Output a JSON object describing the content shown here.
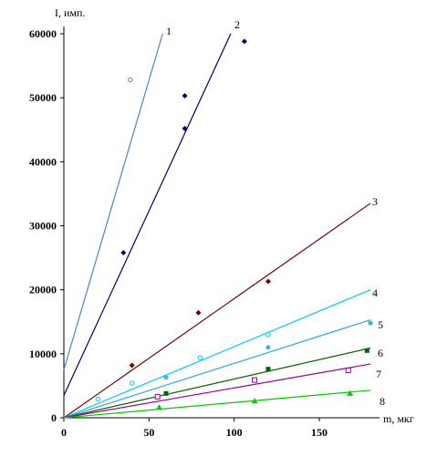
{
  "chart_data": {
    "type": "scatter",
    "title": "",
    "xlabel": "m, мкг",
    "ylabel": "I, имп.",
    "xlim": [
      0,
      180
    ],
    "ylim": [
      0,
      60000
    ],
    "grid": false,
    "legend": "none",
    "x_ticks": [
      0,
      50,
      100,
      150
    ],
    "y_ticks": [
      0,
      10000,
      20000,
      30000,
      40000,
      50000,
      60000
    ],
    "series": [
      {
        "name": "1",
        "color": "#4f81d9",
        "marker": "circle-open",
        "points": [
          [
            39,
            52800
          ]
        ],
        "trend": [
          [
            0,
            7500
          ],
          [
            58,
            60000
          ]
        ]
      },
      {
        "name": "2",
        "color": "#000080",
        "marker": "diamond",
        "points": [
          [
            35,
            25800
          ],
          [
            71,
            50300
          ],
          [
            71,
            45200
          ],
          [
            106,
            58800
          ]
        ],
        "trend": [
          [
            0,
            3500
          ],
          [
            98,
            60000
          ]
        ]
      },
      {
        "name": "3",
        "color": "#800000",
        "marker": "diamond",
        "points": [
          [
            40,
            8200
          ],
          [
            79,
            16400
          ],
          [
            120,
            21300
          ]
        ],
        "trend": [
          [
            0,
            0
          ],
          [
            180,
            33500
          ]
        ]
      },
      {
        "name": "4",
        "color": "#00ccff",
        "marker": "circle-open",
        "points": [
          [
            20,
            2900
          ],
          [
            40,
            5400
          ],
          [
            80,
            9400
          ],
          [
            120,
            13000
          ]
        ],
        "trend": [
          [
            0,
            0
          ],
          [
            180,
            20000
          ]
        ]
      },
      {
        "name": "5",
        "color": "#33a6dd",
        "marker": "asterisk",
        "points": [
          [
            60,
            6300
          ],
          [
            120,
            11000
          ],
          [
            180,
            14800
          ]
        ],
        "trend": [
          [
            0,
            0
          ],
          [
            180,
            15300
          ]
        ]
      },
      {
        "name": "6",
        "color": "#006400",
        "marker": "square",
        "points": [
          [
            60,
            3800
          ],
          [
            120,
            7600
          ],
          [
            178,
            10500
          ]
        ],
        "trend": [
          [
            0,
            0
          ],
          [
            180,
            10900
          ]
        ]
      },
      {
        "name": "7",
        "color": "#990099",
        "marker": "square-open",
        "points": [
          [
            55,
            3300
          ],
          [
            112,
            5900
          ],
          [
            167,
            7400
          ]
        ],
        "trend": [
          [
            0,
            0
          ],
          [
            180,
            8400
          ]
        ]
      },
      {
        "name": "8",
        "color": "#00cc00",
        "marker": "triangle",
        "points": [
          [
            56,
            1600
          ],
          [
            112,
            2600
          ],
          [
            168,
            3800
          ]
        ],
        "trend": [
          [
            0,
            0
          ],
          [
            180,
            4300
          ]
        ]
      }
    ]
  }
}
